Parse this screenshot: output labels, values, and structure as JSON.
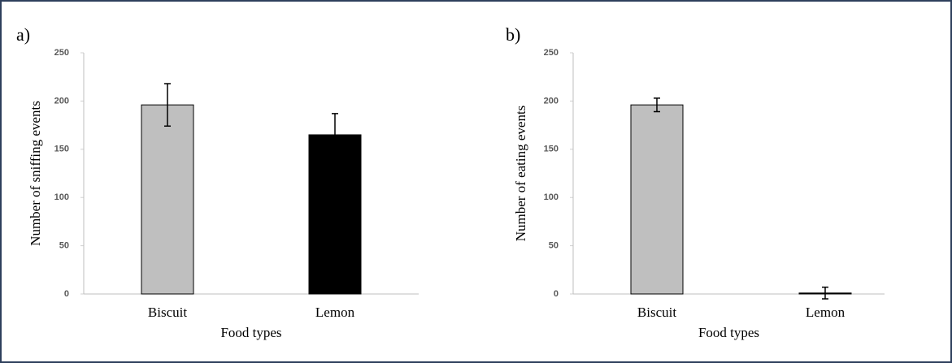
{
  "chart_data": [
    {
      "type": "bar",
      "panel_label": "a)",
      "x_label": "Food types",
      "y_label": "Number of sniffing events",
      "categories": [
        "Biscuit",
        "Lemon"
      ],
      "values": [
        196,
        165
      ],
      "errors": [
        22,
        22
      ],
      "colors": [
        "#bfbfbf",
        "#000000"
      ],
      "ylim": [
        0,
        250
      ],
      "yticks": [
        0,
        50,
        100,
        150,
        200,
        250
      ]
    },
    {
      "type": "bar",
      "panel_label": "b)",
      "x_label": "Food types",
      "y_label": "Number of eating events",
      "categories": [
        "Biscuit",
        "Lemon"
      ],
      "values": [
        196,
        1
      ],
      "errors": [
        7,
        6
      ],
      "colors": [
        "#bfbfbf",
        "#000000"
      ],
      "ylim": [
        0,
        250
      ],
      "yticks": [
        0,
        50,
        100,
        150,
        200,
        250
      ]
    }
  ]
}
